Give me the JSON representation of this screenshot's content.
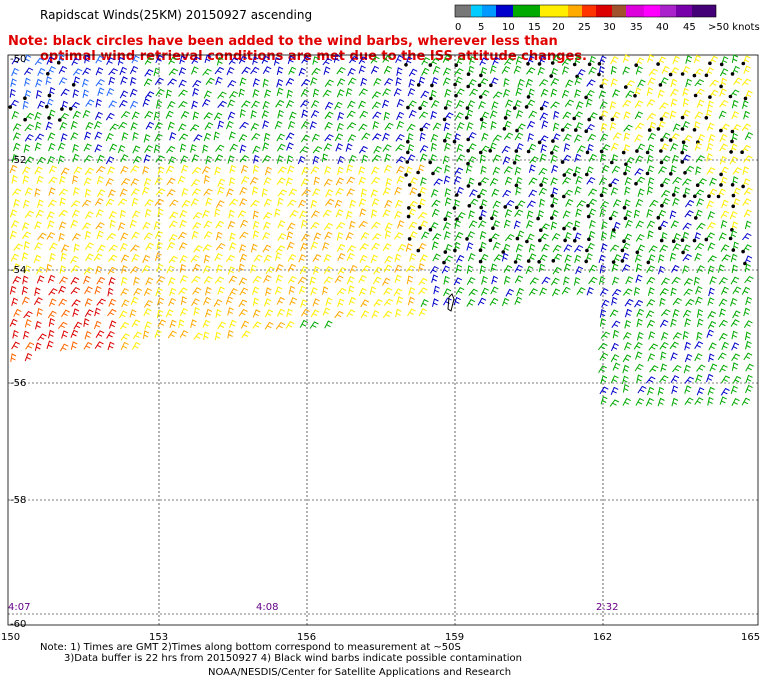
{
  "title": "Rapidscat Winds(25KM) 20150927 ascending",
  "note_line1": "Note: black circles have been added to the wind barbs, wherever less than",
  "note_line2": "optimal wind retrieval conditions are met due to the ISS attitude changes.",
  "legend": {
    "labels": [
      "0",
      "5",
      "10",
      "15",
      "20",
      "25",
      "30",
      "35",
      "40",
      "45",
      ">50 knots"
    ],
    "colors": [
      "#777777",
      "#00ccff",
      "#0088ee",
      "#0000cc",
      "#00aa00",
      "#ffee00",
      "#ffaa00",
      "#ff3300",
      "#cc0000",
      "#a0522d",
      "#ff00ff",
      "#8800cc",
      "#440077"
    ]
  },
  "lat_labels": [
    "-50",
    "-52",
    "-54",
    "-56",
    "-58",
    "-60"
  ],
  "lon_labels": [
    "150",
    "153",
    "156",
    "159",
    "162",
    "165"
  ],
  "time_labels": [
    "4:07",
    "4:08",
    "2:32"
  ],
  "footer_line1": "Note: 1) Times are GMT 2)Times along bottom correspond to measurement at ~50S",
  "footer_line2": "3)Data buffer is 22 hrs from 20150927 4) Black wind barbs indicate possible contamination",
  "footer_line3": "NOAA/NESDIS/Center for Satellite Applications and Research"
}
